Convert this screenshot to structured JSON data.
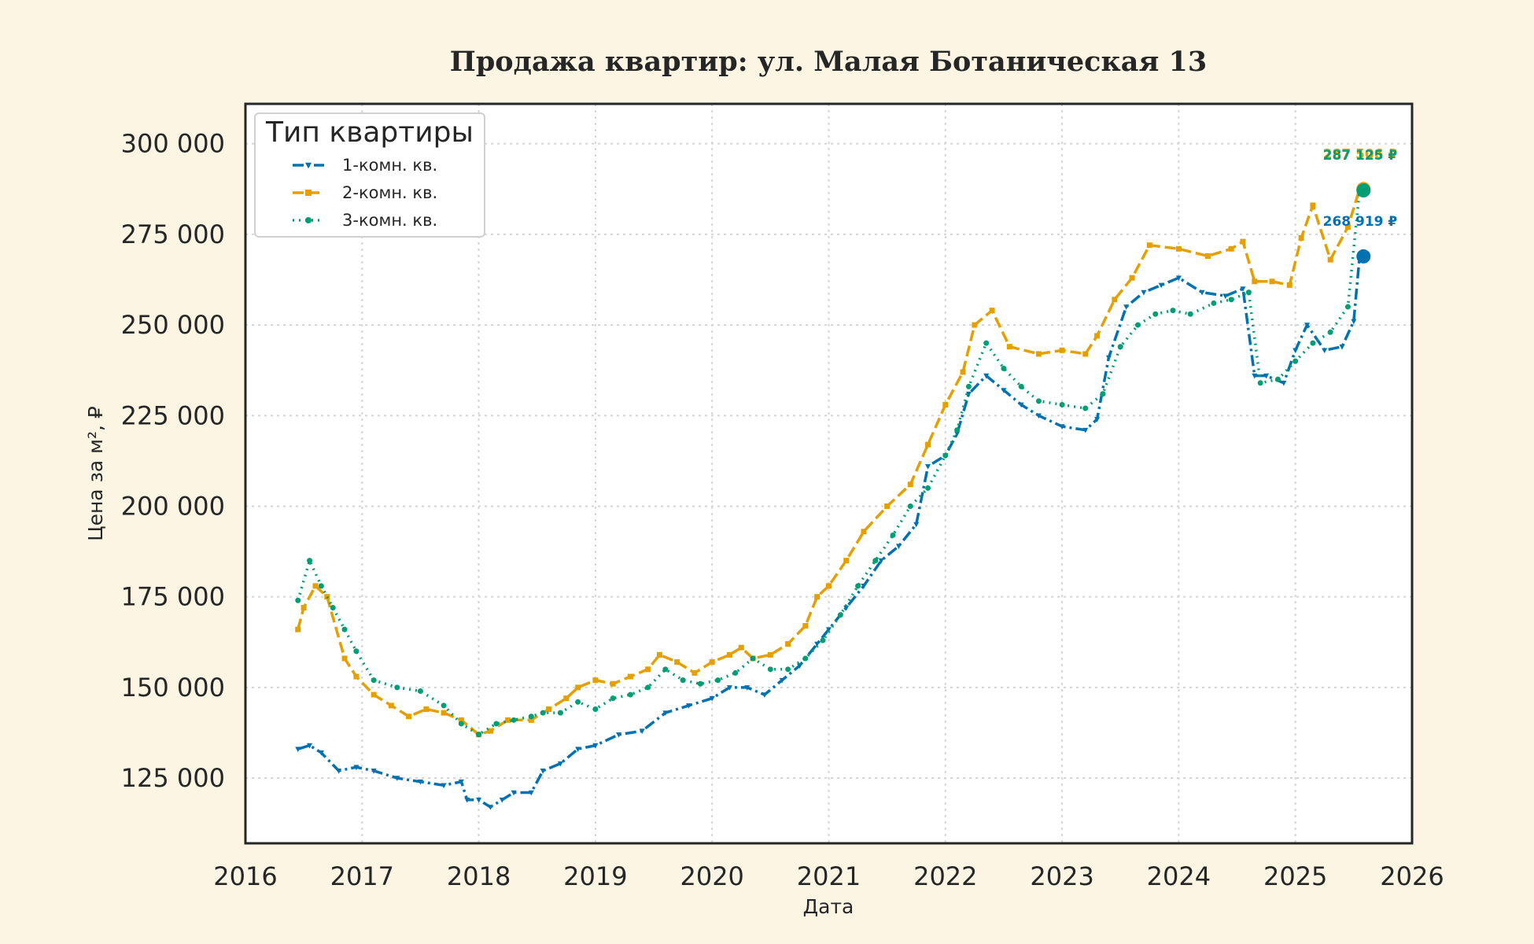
{
  "chart_data": {
    "type": "line",
    "title": "Продажа квартир: ул. Малая Ботаническая 13",
    "xlabel": "Дата",
    "ylabel": "Цена за м², ₽",
    "xlim": [
      2016,
      2026
    ],
    "ylim": [
      107000,
      311000
    ],
    "x_ticks": [
      2016,
      2017,
      2018,
      2019,
      2020,
      2021,
      2022,
      2023,
      2024,
      2025,
      2026
    ],
    "x_tick_labels": [
      "2016",
      "2017",
      "2018",
      "2019",
      "2020",
      "2021",
      "2022",
      "2023",
      "2024",
      "2025",
      "2026"
    ],
    "y_ticks": [
      125000,
      150000,
      175000,
      200000,
      225000,
      250000,
      275000,
      300000
    ],
    "y_tick_labels": [
      "125 000",
      "150 000",
      "175 000",
      "200 000",
      "225 000",
      "250 000",
      "275 000",
      "300 000"
    ],
    "grid": true,
    "legend": {
      "title": "Тип квартиры",
      "position": "top-left"
    },
    "series": [
      {
        "name": "1-комн. кв.",
        "color": "#0072b2",
        "style": "dashdot",
        "marker": "triangle-down",
        "x": [
          2016.45,
          2016.55,
          2016.65,
          2016.8,
          2016.95,
          2017.1,
          2017.3,
          2017.5,
          2017.7,
          2017.85,
          2017.9,
          2018.0,
          2018.1,
          2018.2,
          2018.3,
          2018.45,
          2018.55,
          2018.7,
          2018.85,
          2019.0,
          2019.2,
          2019.4,
          2019.6,
          2019.8,
          2020.0,
          2020.15,
          2020.3,
          2020.45,
          2020.6,
          2020.75,
          2020.9,
          2021.0,
          2021.15,
          2021.3,
          2021.45,
          2021.6,
          2021.75,
          2021.85,
          2022.0,
          2022.1,
          2022.2,
          2022.35,
          2022.5,
          2022.65,
          2022.8,
          2023.0,
          2023.2,
          2023.3,
          2023.4,
          2023.55,
          2023.7,
          2023.85,
          2024.0,
          2024.2,
          2024.4,
          2024.55,
          2024.65,
          2024.75,
          2024.9,
          2025.0,
          2025.1,
          2025.25,
          2025.4,
          2025.5,
          2025.55
        ],
        "y": [
          133000,
          134000,
          132000,
          127000,
          128000,
          127000,
          125000,
          124000,
          123000,
          124000,
          119000,
          119000,
          117000,
          119000,
          121000,
          121000,
          127000,
          129000,
          133000,
          134000,
          137000,
          138000,
          143000,
          145000,
          147000,
          150000,
          150000,
          148000,
          152000,
          156000,
          162000,
          166000,
          172000,
          178000,
          185000,
          189000,
          195000,
          211000,
          214000,
          220000,
          231000,
          236000,
          232000,
          228000,
          225000,
          222000,
          221000,
          224000,
          241000,
          255000,
          259000,
          261000,
          263000,
          259000,
          258000,
          260000,
          236000,
          236000,
          234000,
          243000,
          250000,
          243000,
          244000,
          251000,
          268919
        ]
      },
      {
        "name": "2-комн. кв.",
        "color": "#e69f00",
        "style": "dashed",
        "marker": "square",
        "x": [
          2016.45,
          2016.5,
          2016.6,
          2016.7,
          2016.85,
          2016.95,
          2017.1,
          2017.25,
          2017.4,
          2017.55,
          2017.7,
          2017.85,
          2018.0,
          2018.1,
          2018.25,
          2018.45,
          2018.6,
          2018.75,
          2018.85,
          2019.0,
          2019.15,
          2019.3,
          2019.45,
          2019.55,
          2019.7,
          2019.85,
          2020.0,
          2020.15,
          2020.25,
          2020.35,
          2020.5,
          2020.65,
          2020.8,
          2020.9,
          2021.0,
          2021.15,
          2021.3,
          2021.5,
          2021.7,
          2021.85,
          2022.0,
          2022.15,
          2022.25,
          2022.4,
          2022.55,
          2022.8,
          2023.0,
          2023.2,
          2023.3,
          2023.45,
          2023.6,
          2023.75,
          2024.0,
          2024.25,
          2024.45,
          2024.55,
          2024.65,
          2024.8,
          2024.95,
          2025.05,
          2025.15,
          2025.3,
          2025.45,
          2025.55
        ],
        "y": [
          166000,
          172000,
          178000,
          175000,
          158000,
          153000,
          148000,
          145000,
          142000,
          144000,
          143000,
          141000,
          137000,
          138000,
          141000,
          141000,
          144000,
          147000,
          150000,
          152000,
          151000,
          153000,
          155000,
          159000,
          157000,
          154000,
          157000,
          159000,
          161000,
          158000,
          159000,
          162000,
          167000,
          175000,
          178000,
          185000,
          193000,
          200000,
          206000,
          217000,
          228000,
          237000,
          250000,
          254000,
          244000,
          242000,
          243000,
          242000,
          247000,
          257000,
          263000,
          272000,
          271000,
          269000,
          271000,
          273000,
          262000,
          262000,
          261000,
          274000,
          283000,
          268000,
          277000,
          287506
        ]
      },
      {
        "name": "3-комн. кв.",
        "color": "#009e73",
        "style": "dotted",
        "marker": "circle",
        "x": [
          2016.45,
          2016.55,
          2016.65,
          2016.75,
          2016.85,
          2016.95,
          2017.1,
          2017.3,
          2017.5,
          2017.7,
          2017.85,
          2018.0,
          2018.15,
          2018.3,
          2018.45,
          2018.55,
          2018.7,
          2018.85,
          2019.0,
          2019.15,
          2019.3,
          2019.45,
          2019.6,
          2019.75,
          2019.9,
          2020.05,
          2020.2,
          2020.35,
          2020.5,
          2020.65,
          2020.8,
          2020.95,
          2021.1,
          2021.25,
          2021.4,
          2021.55,
          2021.7,
          2021.85,
          2022.0,
          2022.1,
          2022.2,
          2022.35,
          2022.5,
          2022.65,
          2022.8,
          2023.0,
          2023.2,
          2023.35,
          2023.5,
          2023.65,
          2023.8,
          2023.95,
          2024.1,
          2024.3,
          2024.45,
          2024.6,
          2024.7,
          2024.85,
          2025.0,
          2025.15,
          2025.3,
          2025.45,
          2025.55
        ],
        "y": [
          174000,
          185000,
          178000,
          172000,
          166000,
          160000,
          152000,
          150000,
          149000,
          145000,
          140000,
          137000,
          140000,
          141000,
          142000,
          143000,
          143000,
          146000,
          144000,
          147000,
          148000,
          150000,
          155000,
          152000,
          151000,
          152000,
          154000,
          158000,
          155000,
          155000,
          158000,
          163000,
          170000,
          178000,
          185000,
          192000,
          200000,
          205000,
          214000,
          221000,
          233000,
          245000,
          238000,
          233000,
          229000,
          228000,
          227000,
          231000,
          244000,
          250000,
          253000,
          254000,
          253000,
          256000,
          257000,
          259000,
          234000,
          235000,
          240000,
          245000,
          248000,
          255000,
          287125
        ]
      }
    ],
    "end_labels": [
      {
        "series": "2-комн. кв.",
        "text": "287 506 ₽",
        "color": "#e69f00"
      },
      {
        "series": "3-комн. кв.",
        "text": "287 125 ₽",
        "color": "#009e73"
      },
      {
        "series": "1-комн. кв.",
        "text": "268 919 ₽",
        "color": "#0072b2"
      }
    ]
  }
}
